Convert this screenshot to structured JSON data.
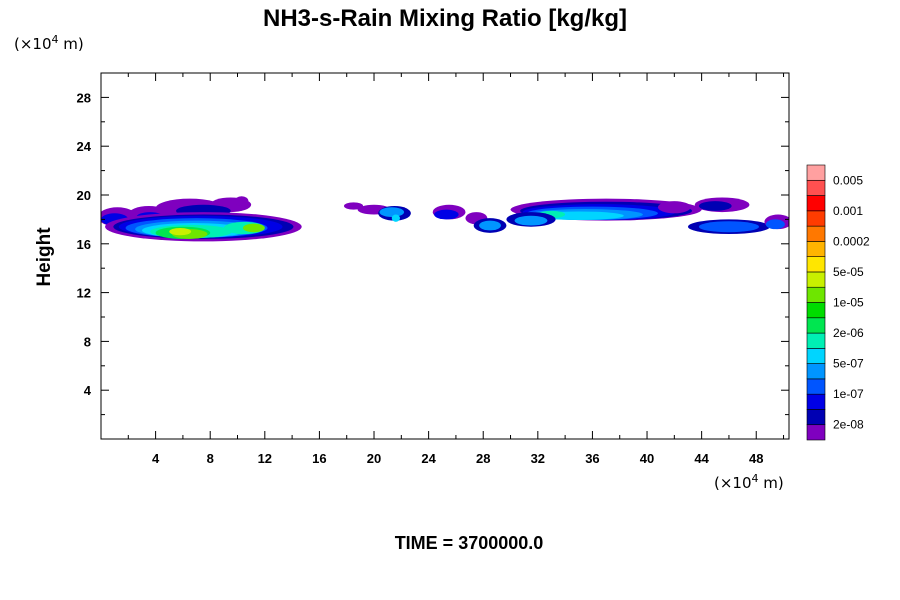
{
  "chart_data": {
    "type": "heatmap",
    "title": "NH3-s-Rain Mixing Ratio [kg/kg]",
    "ylabel": "Height",
    "x_unit": "(×10",
    "x_unit_exp": "4",
    "x_unit_tail": " m)",
    "y_unit": "(×10",
    "y_unit_exp": "4",
    "y_unit_tail": " m)",
    "xlim": [
      0,
      50.4
    ],
    "ylim": [
      0,
      30
    ],
    "x_ticks": [
      4,
      8,
      12,
      16,
      20,
      24,
      28,
      32,
      36,
      40,
      44,
      48
    ],
    "y_ticks": [
      4,
      8,
      12,
      16,
      20,
      24,
      28
    ],
    "time_label": "TIME = 3700000.0",
    "colorbar": {
      "colors": [
        "#7f00bf",
        "#0000b3",
        "#0000e6",
        "#0055ff",
        "#0095ff",
        "#00d5ff",
        "#00f0b4",
        "#00e650",
        "#00dc00",
        "#6ee600",
        "#c8f000",
        "#ffe600",
        "#ffb400",
        "#ff7800",
        "#ff3c00",
        "#ff0000",
        "#ff5050",
        "#ffa0a0"
      ],
      "labels": [
        "2e-08",
        "1e-07",
        "5e-07",
        "2e-06",
        "1e-05",
        "5e-05",
        "0.0002",
        "0.001",
        "0.005"
      ]
    },
    "regions": [
      {
        "x": [
          0,
          15
        ],
        "y": [
          16.2,
          19.8
        ],
        "level": "1e-07 to 5e-05"
      },
      {
        "x": [
          18,
          22.5
        ],
        "y": [
          18,
          19.2
        ],
        "level": "2e-08 to 5e-07"
      },
      {
        "x": [
          24,
          50.4
        ],
        "y": [
          16.8,
          19.6
        ],
        "level": "2e-08 to 2e-06"
      }
    ]
  }
}
